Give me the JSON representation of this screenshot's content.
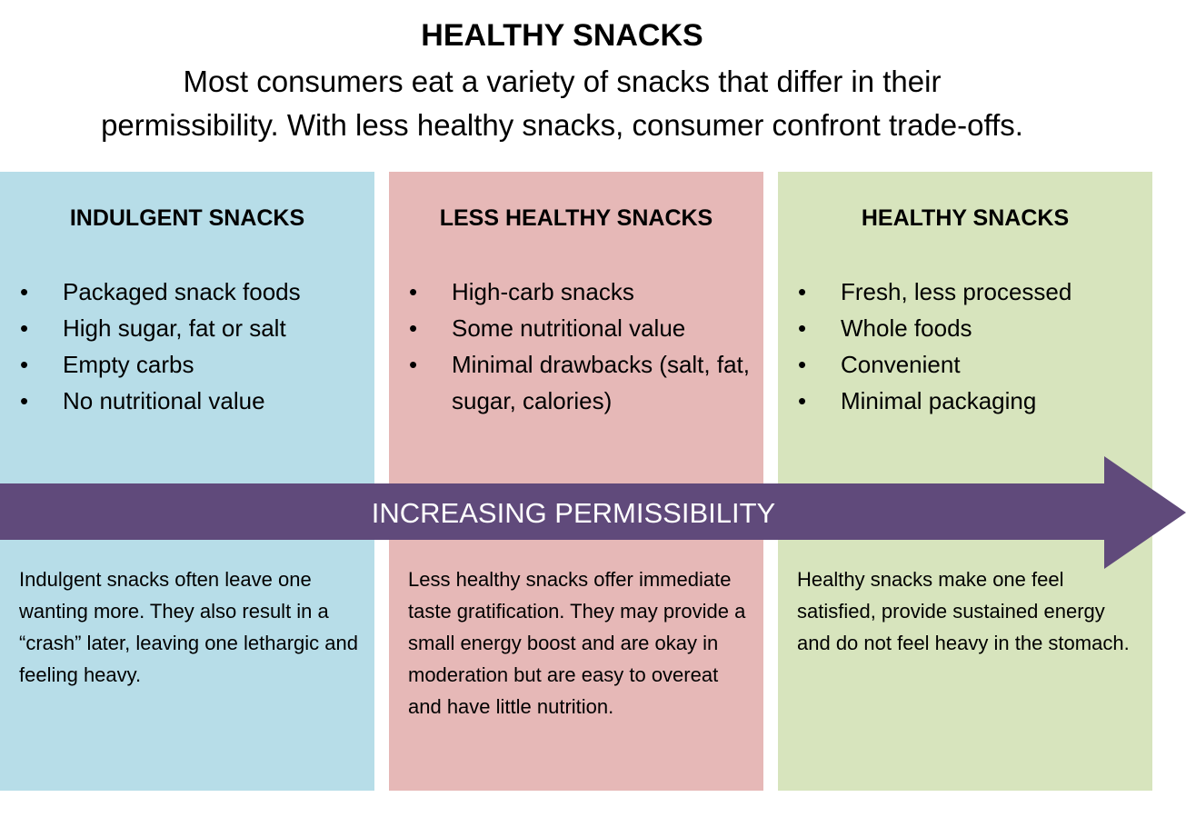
{
  "header": {
    "title": "HEALTHY SNACKS",
    "subtitle_lines": [
      "Most consumers eat a variety of snacks that differ in their",
      "permissibility. With less healthy snacks, consumer confront trade-offs."
    ]
  },
  "columns": [
    {
      "heading": "INDULGENT SNACKS",
      "bullets": [
        "Packaged snack foods",
        "High sugar, fat or salt",
        "Empty carbs",
        "No nutritional value"
      ],
      "description": "Indulgent snacks often leave one wanting more. They also result in a “crash” later, leaving one lethargic and feeling heavy."
    },
    {
      "heading": "LESS HEALTHY SNACKS",
      "bullets": [
        "High-carb snacks",
        "Some nutritional value",
        "Minimal drawbacks (salt, fat, sugar, calories)"
      ],
      "description": "Less healthy snacks offer immediate taste gratification. They may provide a small energy boost and are okay in moderation but are easy to overeat and have little nutrition."
    },
    {
      "heading": "HEALTHY SNACKS",
      "bullets": [
        "Fresh, less processed",
        "Whole foods",
        "Convenient",
        "Minimal packaging"
      ],
      "description": "Healthy snacks make one feel satisfied, provide sustained energy and do not feel heavy in the stomach."
    }
  ],
  "arrow": {
    "label": "INCREASING PERMISSIBILITY"
  }
}
